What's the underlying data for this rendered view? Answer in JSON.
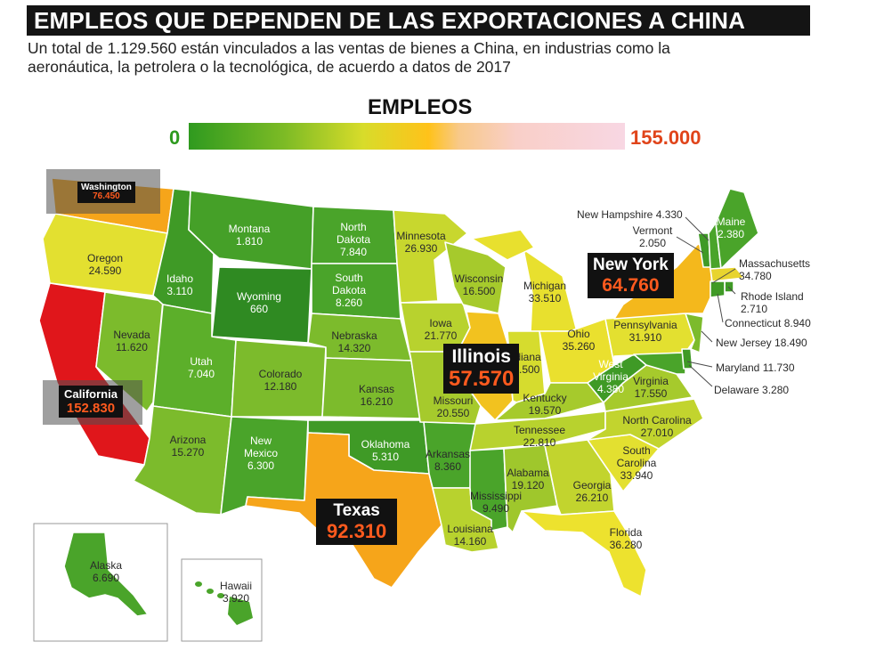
{
  "title": "EMPLEOS QUE DEPENDEN DE LAS EXPORTACIONES A CHINA",
  "subtitle": "Un total de 1.129.560 están vinculados a las ventas de bienes a China, en industrias como la aeronáutica, la petrolera o la tecnológica, de acuerdo a datos de 2017",
  "legend": {
    "title": "EMPLEOS",
    "min_label": "0",
    "max_label": "155.000",
    "min_color": "#2f9a1f",
    "max_color": "#e0441a"
  },
  "colors": {
    "dark_green": "#2f8a22",
    "green": "#4aa42a",
    "light_green": "#7cbb2c",
    "yellow_green": "#b8d22e",
    "yellow": "#ede22e",
    "orange": "#f6a51a",
    "red": "#e0161b"
  },
  "states": [
    {
      "id": "washington",
      "name": "Washington",
      "value": "76.450"
    },
    {
      "id": "oregon",
      "name": "Oregon",
      "value": "24.590"
    },
    {
      "id": "california",
      "name": "California",
      "value": "152.830"
    },
    {
      "id": "nevada",
      "name": "Nevada",
      "value": "11.620"
    },
    {
      "id": "idaho",
      "name": "Idaho",
      "value": "3.110"
    },
    {
      "id": "montana",
      "name": "Montana",
      "value": "1.810"
    },
    {
      "id": "wyoming",
      "name": "Wyoming",
      "value": "660"
    },
    {
      "id": "utah",
      "name": "Utah",
      "value": "7.040"
    },
    {
      "id": "arizona",
      "name": "Arizona",
      "value": "15.270"
    },
    {
      "id": "colorado",
      "name": "Colorado",
      "value": "12.180"
    },
    {
      "id": "new-mexico",
      "name": "New Mexico",
      "value": "6.300"
    },
    {
      "id": "north-dakota",
      "name": "North Dakota",
      "value": "7.840"
    },
    {
      "id": "south-dakota",
      "name": "South Dakota",
      "value": "8.260"
    },
    {
      "id": "nebraska",
      "name": "Nebraska",
      "value": "14.320"
    },
    {
      "id": "kansas",
      "name": "Kansas",
      "value": "16.210"
    },
    {
      "id": "oklahoma",
      "name": "Oklahoma",
      "value": "5.310"
    },
    {
      "id": "texas",
      "name": "Texas",
      "value": "92.310"
    },
    {
      "id": "minnesota",
      "name": "Minnesota",
      "value": "26.930"
    },
    {
      "id": "iowa",
      "name": "Iowa",
      "value": "21.770"
    },
    {
      "id": "missouri",
      "name": "Missouri",
      "value": "20.550"
    },
    {
      "id": "arkansas",
      "name": "Arkansas",
      "value": "8.360"
    },
    {
      "id": "louisiana",
      "name": "Louisiana",
      "value": "14.160"
    },
    {
      "id": "wisconsin",
      "name": "Wisconsin",
      "value": "16.500"
    },
    {
      "id": "illinois",
      "name": "Illinois",
      "value": "57.570"
    },
    {
      "id": "michigan",
      "name": "Michigan",
      "value": "33.510"
    },
    {
      "id": "indiana",
      "name": "Indiana",
      "value": "26.500"
    },
    {
      "id": "ohio",
      "name": "Ohio",
      "value": "35.260"
    },
    {
      "id": "kentucky",
      "name": "Kentucky",
      "value": "19.570"
    },
    {
      "id": "tennessee",
      "name": "Tennessee",
      "value": "22.810"
    },
    {
      "id": "mississippi",
      "name": "Mississippi",
      "value": "9.490"
    },
    {
      "id": "alabama",
      "name": "Alabama",
      "value": "19.120"
    },
    {
      "id": "georgia",
      "name": "Georgia",
      "value": "26.210"
    },
    {
      "id": "florida",
      "name": "Florida",
      "value": "36.280"
    },
    {
      "id": "south-carolina",
      "name": "South Carolina",
      "value": "33.940"
    },
    {
      "id": "north-carolina",
      "name": "North Carolina",
      "value": "27.010"
    },
    {
      "id": "virginia",
      "name": "Virginia",
      "value": "17.550"
    },
    {
      "id": "west-virginia",
      "name": "West Virginia",
      "value": "4.380"
    },
    {
      "id": "pennsylvania",
      "name": "Pennsylvania",
      "value": "31.910"
    },
    {
      "id": "new-york",
      "name": "New York",
      "value": "64.760"
    },
    {
      "id": "maine",
      "name": "Maine",
      "value": "2.380"
    },
    {
      "id": "vermont",
      "name": "Vermont",
      "value": "2.050"
    },
    {
      "id": "new-hampshire",
      "name": "New Hampshire",
      "value": "4.330"
    },
    {
      "id": "massachusetts",
      "name": "Massachusetts",
      "value": "34.780"
    },
    {
      "id": "rhode-island",
      "name": "Rhode Island",
      "value": "2.710"
    },
    {
      "id": "connecticut",
      "name": "Connecticut",
      "value": "8.940"
    },
    {
      "id": "new-jersey",
      "name": "New Jersey",
      "value": "18.490"
    },
    {
      "id": "maryland",
      "name": "Maryland",
      "value": "11.730"
    },
    {
      "id": "delaware",
      "name": "Delaware",
      "value": "3.280"
    },
    {
      "id": "alaska",
      "name": "Alaska",
      "value": "6.690"
    },
    {
      "id": "hawaii",
      "name": "Hawaii",
      "value": "3.920"
    }
  ]
}
